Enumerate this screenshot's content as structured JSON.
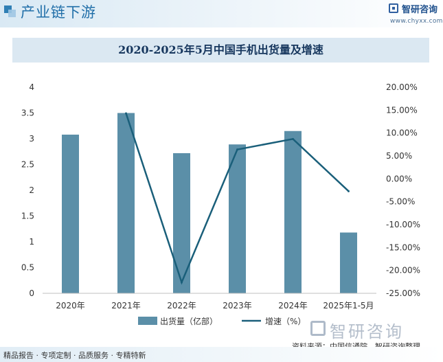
{
  "header": {
    "section_label": "产业链下游",
    "brand_name": "智研咨询",
    "brand_url": "www.chyxx.com"
  },
  "chart_data": {
    "type": "bar",
    "title": "2020-2025年5月中国手机出货量及增速",
    "categories": [
      "2020年",
      "2021年",
      "2022年",
      "2023年",
      "2024年",
      "2025年1-5月"
    ],
    "series": [
      {
        "name": "出货量（亿部）",
        "type": "bar",
        "axis": "left",
        "color": "#5b8fa8",
        "values": [
          3.08,
          3.5,
          2.72,
          2.89,
          3.15,
          1.18
        ]
      },
      {
        "name": "增速（%）",
        "type": "line",
        "axis": "right",
        "color": "#1a5f7a",
        "values": [
          null,
          14.3,
          -22.6,
          6.4,
          8.7,
          -2.7
        ]
      }
    ],
    "y_left": {
      "min": 0,
      "max": 4,
      "step": 0.5,
      "ticks": [
        "0",
        "0.5",
        "1",
        "1.5",
        "2",
        "2.5",
        "3",
        "3.5",
        "4"
      ]
    },
    "y_right": {
      "min": -25,
      "max": 20,
      "step": 5,
      "ticks": [
        "-25.00%",
        "-20.00%",
        "-15.00%",
        "-10.00%",
        "-5.00%",
        "0.00%",
        "5.00%",
        "10.00%",
        "15.00%",
        "20.00%"
      ]
    },
    "legend_placement": "bottom",
    "grid": false
  },
  "footer": {
    "tagline": "精品报告 · 专项定制 · 品质服务 · 专精特新",
    "source": "资料来源：中国信通院、智研咨询整理",
    "watermark": "智研咨询"
  }
}
